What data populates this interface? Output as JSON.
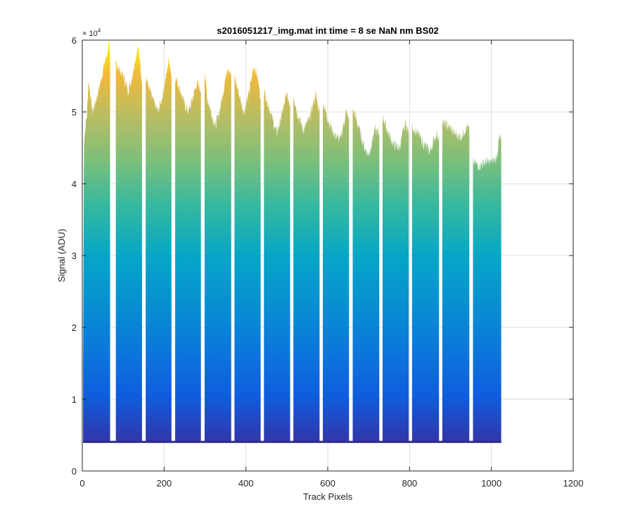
{
  "chart_data": {
    "type": "area",
    "title": "s2016051217_img.mat int time = 8 se  NaN nm BS02",
    "xlabel": "Track Pixels",
    "ylabel": "Signal (ADU)",
    "xlim": [
      0,
      1200
    ],
    "ylim": [
      0,
      60000
    ],
    "y_exponent_label": "× 10",
    "y_exponent_power": "4",
    "x_ticks": [
      0,
      200,
      400,
      600,
      800,
      1000,
      1200
    ],
    "x_tick_labels": [
      "0",
      "200",
      "400",
      "600",
      "800",
      "1000",
      "1200"
    ],
    "y_ticks": [
      0,
      10000,
      20000,
      30000,
      40000,
      50000,
      60000
    ],
    "y_tick_labels": [
      "0",
      "1",
      "2",
      "3",
      "4",
      "5",
      "6"
    ],
    "grid": true,
    "colormap": "parula",
    "baseline": 4000,
    "x_end": 1024,
    "gaps": [
      0,
      78,
      150,
      222,
      294,
      368,
      440,
      512,
      584,
      656,
      730,
      802,
      876,
      950
    ],
    "stripes": [
      {
        "x_start": 2,
        "x_end": 68,
        "profile": [
          [
            2,
            15000
          ],
          [
            4,
            46000
          ],
          [
            12,
            50000
          ],
          [
            15,
            54500
          ],
          [
            25,
            50000
          ],
          [
            40,
            53000
          ],
          [
            55,
            57000
          ],
          [
            60,
            58000
          ],
          [
            65,
            59500
          ],
          [
            68,
            58000
          ]
        ]
      },
      {
        "x_start": 82,
        "x_end": 146,
        "profile": [
          [
            82,
            57000
          ],
          [
            90,
            56000
          ],
          [
            100,
            55000
          ],
          [
            112,
            53000
          ],
          [
            120,
            54500
          ],
          [
            128,
            57000
          ],
          [
            136,
            59000
          ],
          [
            140,
            58000
          ],
          [
            146,
            54000
          ]
        ]
      },
      {
        "x_start": 155,
        "x_end": 218,
        "profile": [
          [
            155,
            55000
          ],
          [
            170,
            52000
          ],
          [
            185,
            50000
          ],
          [
            195,
            52000
          ],
          [
            205,
            55000
          ],
          [
            212,
            57500
          ],
          [
            218,
            55000
          ]
        ]
      },
      {
        "x_start": 227,
        "x_end": 290,
        "profile": [
          [
            227,
            55000
          ],
          [
            240,
            53000
          ],
          [
            250,
            51000
          ],
          [
            260,
            50000
          ],
          [
            270,
            52000
          ],
          [
            280,
            54000
          ],
          [
            290,
            53000
          ]
        ]
      },
      {
        "x_start": 299,
        "x_end": 364,
        "profile": [
          [
            299,
            56000
          ],
          [
            305,
            52000
          ],
          [
            315,
            50000
          ],
          [
            325,
            48000
          ],
          [
            335,
            50000
          ],
          [
            345,
            53000
          ],
          [
            355,
            56500
          ],
          [
            364,
            55000
          ]
        ]
      },
      {
        "x_start": 372,
        "x_end": 436,
        "profile": [
          [
            372,
            55000
          ],
          [
            385,
            52000
          ],
          [
            395,
            50000
          ],
          [
            405,
            52000
          ],
          [
            420,
            56500
          ],
          [
            428,
            55000
          ],
          [
            436,
            52000
          ]
        ]
      },
      {
        "x_start": 444,
        "x_end": 508,
        "profile": [
          [
            444,
            53000
          ],
          [
            455,
            51000
          ],
          [
            465,
            49000
          ],
          [
            475,
            47000
          ],
          [
            485,
            49000
          ],
          [
            500,
            52500
          ],
          [
            508,
            51000
          ]
        ]
      },
      {
        "x_start": 516,
        "x_end": 580,
        "profile": [
          [
            516,
            52500
          ],
          [
            525,
            50000
          ],
          [
            540,
            47500
          ],
          [
            555,
            49000
          ],
          [
            570,
            52500
          ],
          [
            580,
            50000
          ]
        ]
      },
      {
        "x_start": 588,
        "x_end": 652,
        "profile": [
          [
            588,
            51500
          ],
          [
            600,
            49000
          ],
          [
            615,
            47000
          ],
          [
            630,
            46000
          ],
          [
            645,
            50000
          ],
          [
            652,
            49000
          ]
        ]
      },
      {
        "x_start": 661,
        "x_end": 726,
        "profile": [
          [
            661,
            50500
          ],
          [
            675,
            48000
          ],
          [
            690,
            45000
          ],
          [
            700,
            44000
          ],
          [
            715,
            47500
          ],
          [
            726,
            47000
          ]
        ]
      },
      {
        "x_start": 734,
        "x_end": 798,
        "profile": [
          [
            734,
            49500
          ],
          [
            745,
            47500
          ],
          [
            760,
            45500
          ],
          [
            775,
            45000
          ],
          [
            790,
            48500
          ],
          [
            798,
            47000
          ]
        ]
      },
      {
        "x_start": 806,
        "x_end": 872,
        "profile": [
          [
            806,
            48000
          ],
          [
            820,
            47000
          ],
          [
            835,
            45500
          ],
          [
            850,
            44500
          ],
          [
            865,
            47000
          ],
          [
            872,
            46500
          ]
        ]
      },
      {
        "x_start": 880,
        "x_end": 946,
        "profile": [
          [
            880,
            48500
          ],
          [
            895,
            48000
          ],
          [
            910,
            47000
          ],
          [
            925,
            46500
          ],
          [
            940,
            48000
          ],
          [
            946,
            47500
          ]
        ]
      },
      {
        "x_start": 955,
        "x_end": 1024,
        "profile": [
          [
            955,
            43000
          ],
          [
            970,
            42500
          ],
          [
            985,
            43000
          ],
          [
            1000,
            43000
          ],
          [
            1012,
            43500
          ],
          [
            1020,
            46500
          ],
          [
            1024,
            46000
          ]
        ]
      }
    ]
  }
}
